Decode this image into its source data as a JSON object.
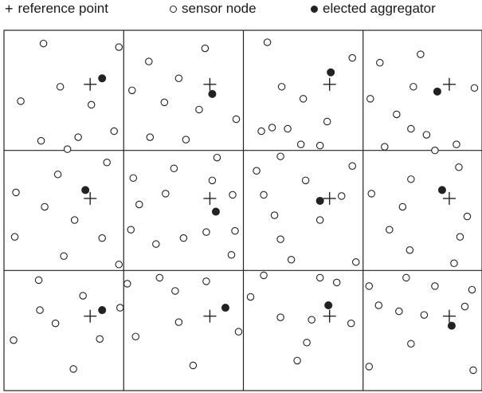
{
  "legend": {
    "reference_label": "reference point",
    "sensor_label": "sensor node",
    "aggregator_label": "elected aggregator"
  },
  "colors": {
    "ink": "#222222",
    "background": "#ffffff"
  },
  "grid": {
    "rows": 3,
    "cols": 4,
    "cells": [
      {
        "ref": [
          0.72,
          0.45
        ],
        "agg": [
          0.82,
          0.4
        ],
        "sensors": [
          [
            0.33,
            0.11
          ],
          [
            0.96,
            0.14
          ],
          [
            0.47,
            0.47
          ],
          [
            0.73,
            0.62
          ],
          [
            0.14,
            0.59
          ],
          [
            0.92,
            0.84
          ],
          [
            0.31,
            0.92
          ],
          [
            0.62,
            0.89
          ],
          [
            0.53,
            0.99
          ]
        ]
      },
      {
        "ref": [
          0.72,
          0.45
        ],
        "agg": [
          0.74,
          0.53
        ],
        "sensors": [
          [
            0.21,
            0.26
          ],
          [
            0.68,
            0.15
          ],
          [
            0.46,
            0.4
          ],
          [
            0.07,
            0.5
          ],
          [
            0.34,
            0.6
          ],
          [
            0.63,
            0.66
          ],
          [
            0.94,
            0.74
          ],
          [
            0.22,
            0.89
          ],
          [
            0.52,
            0.91
          ]
        ]
      },
      {
        "ref": [
          0.72,
          0.45
        ],
        "agg": [
          0.73,
          0.35
        ],
        "sensors": [
          [
            0.2,
            0.1
          ],
          [
            0.91,
            0.23
          ],
          [
            0.32,
            0.47
          ],
          [
            0.5,
            0.57
          ],
          [
            0.7,
            0.76
          ],
          [
            0.15,
            0.84
          ],
          [
            0.37,
            0.82
          ],
          [
            0.48,
            0.95
          ],
          [
            0.64,
            0.96
          ],
          [
            0.24,
            0.81
          ]
        ]
      },
      {
        "ref": [
          0.72,
          0.45
        ],
        "agg": [
          0.62,
          0.51
        ],
        "sensors": [
          [
            0.14,
            0.27
          ],
          [
            0.48,
            0.2
          ],
          [
            0.93,
            0.48
          ],
          [
            0.42,
            0.47
          ],
          [
            0.06,
            0.57
          ],
          [
            0.28,
            0.7
          ],
          [
            0.4,
            0.82
          ],
          [
            0.18,
            0.97
          ],
          [
            0.53,
            0.87
          ],
          [
            0.78,
            0.95
          ],
          [
            0.6,
            1.0
          ]
        ]
      },
      {
        "ref": [
          0.72,
          0.4
        ],
        "agg": [
          0.68,
          0.33
        ],
        "sensors": [
          [
            0.86,
            0.1
          ],
          [
            0.45,
            0.2
          ],
          [
            0.1,
            0.35
          ],
          [
            0.34,
            0.47
          ],
          [
            0.59,
            0.58
          ],
          [
            0.82,
            0.73
          ],
          [
            0.5,
            0.88
          ],
          [
            0.96,
            0.95
          ],
          [
            0.09,
            0.72
          ]
        ]
      },
      {
        "ref": [
          0.72,
          0.4
        ],
        "agg": [
          0.77,
          0.51
        ],
        "sensors": [
          [
            0.78,
            0.06
          ],
          [
            0.42,
            0.15
          ],
          [
            0.08,
            0.23
          ],
          [
            0.74,
            0.25
          ],
          [
            0.35,
            0.36
          ],
          [
            0.91,
            0.37
          ],
          [
            0.13,
            0.45
          ],
          [
            0.69,
            0.68
          ],
          [
            0.5,
            0.73
          ],
          [
            0.27,
            0.78
          ],
          [
            0.9,
            0.87
          ],
          [
            0.06,
            0.66
          ],
          [
            0.93,
            0.67
          ]
        ]
      },
      {
        "ref": [
          0.72,
          0.4
        ],
        "agg": [
          0.64,
          0.42
        ],
        "sensors": [
          [
            0.31,
            0.05
          ],
          [
            0.91,
            0.13
          ],
          [
            0.11,
            0.17
          ],
          [
            0.52,
            0.25
          ],
          [
            0.82,
            0.38
          ],
          [
            0.17,
            0.37
          ],
          [
            0.26,
            0.54
          ],
          [
            0.64,
            0.58
          ],
          [
            0.31,
            0.74
          ],
          [
            0.4,
            0.91
          ],
          [
            0.94,
            0.93
          ]
        ]
      },
      {
        "ref": [
          0.72,
          0.4
        ],
        "agg": [
          0.66,
          0.33
        ],
        "sensors": [
          [
            0.8,
            0.14
          ],
          [
            0.4,
            0.24
          ],
          [
            0.07,
            0.36
          ],
          [
            0.33,
            0.47
          ],
          [
            0.87,
            0.55
          ],
          [
            0.22,
            0.66
          ],
          [
            0.81,
            0.72
          ],
          [
            0.39,
            0.83
          ],
          [
            0.76,
            0.94
          ]
        ]
      },
      {
        "ref": [
          0.72,
          0.38
        ],
        "agg": [
          0.82,
          0.33
        ],
        "sensors": [
          [
            0.29,
            0.08
          ],
          [
            0.66,
            0.21
          ],
          [
            0.3,
            0.33
          ],
          [
            0.43,
            0.44
          ],
          [
            0.08,
            0.58
          ],
          [
            0.8,
            0.57
          ],
          [
            0.58,
            0.82
          ],
          [
            0.97,
            0.31
          ]
        ]
      },
      {
        "ref": [
          0.72,
          0.38
        ],
        "agg": [
          0.85,
          0.31
        ],
        "sensors": [
          [
            0.03,
            0.11
          ],
          [
            0.3,
            0.06
          ],
          [
            0.43,
            0.17
          ],
          [
            0.69,
            0.09
          ],
          [
            0.46,
            0.43
          ],
          [
            0.1,
            0.55
          ],
          [
            0.58,
            0.79
          ],
          [
            0.96,
            0.51
          ]
        ]
      },
      {
        "ref": [
          0.72,
          0.38
        ],
        "agg": [
          0.71,
          0.29
        ],
        "sensors": [
          [
            0.17,
            0.04
          ],
          [
            0.64,
            0.06
          ],
          [
            0.78,
            0.1
          ],
          [
            0.06,
            0.22
          ],
          [
            0.31,
            0.39
          ],
          [
            0.57,
            0.41
          ],
          [
            0.9,
            0.44
          ],
          [
            0.53,
            0.6
          ],
          [
            0.45,
            0.75
          ]
        ]
      },
      {
        "ref": [
          0.72,
          0.38
        ],
        "agg": [
          0.74,
          0.46
        ],
        "sensors": [
          [
            0.05,
            0.13
          ],
          [
            0.36,
            0.06
          ],
          [
            0.6,
            0.13
          ],
          [
            0.91,
            0.16
          ],
          [
            0.13,
            0.29
          ],
          [
            0.3,
            0.34
          ],
          [
            0.51,
            0.37
          ],
          [
            0.85,
            0.3
          ],
          [
            0.4,
            0.61
          ],
          [
            0.05,
            0.8
          ],
          [
            0.92,
            0.83
          ]
        ]
      }
    ]
  }
}
